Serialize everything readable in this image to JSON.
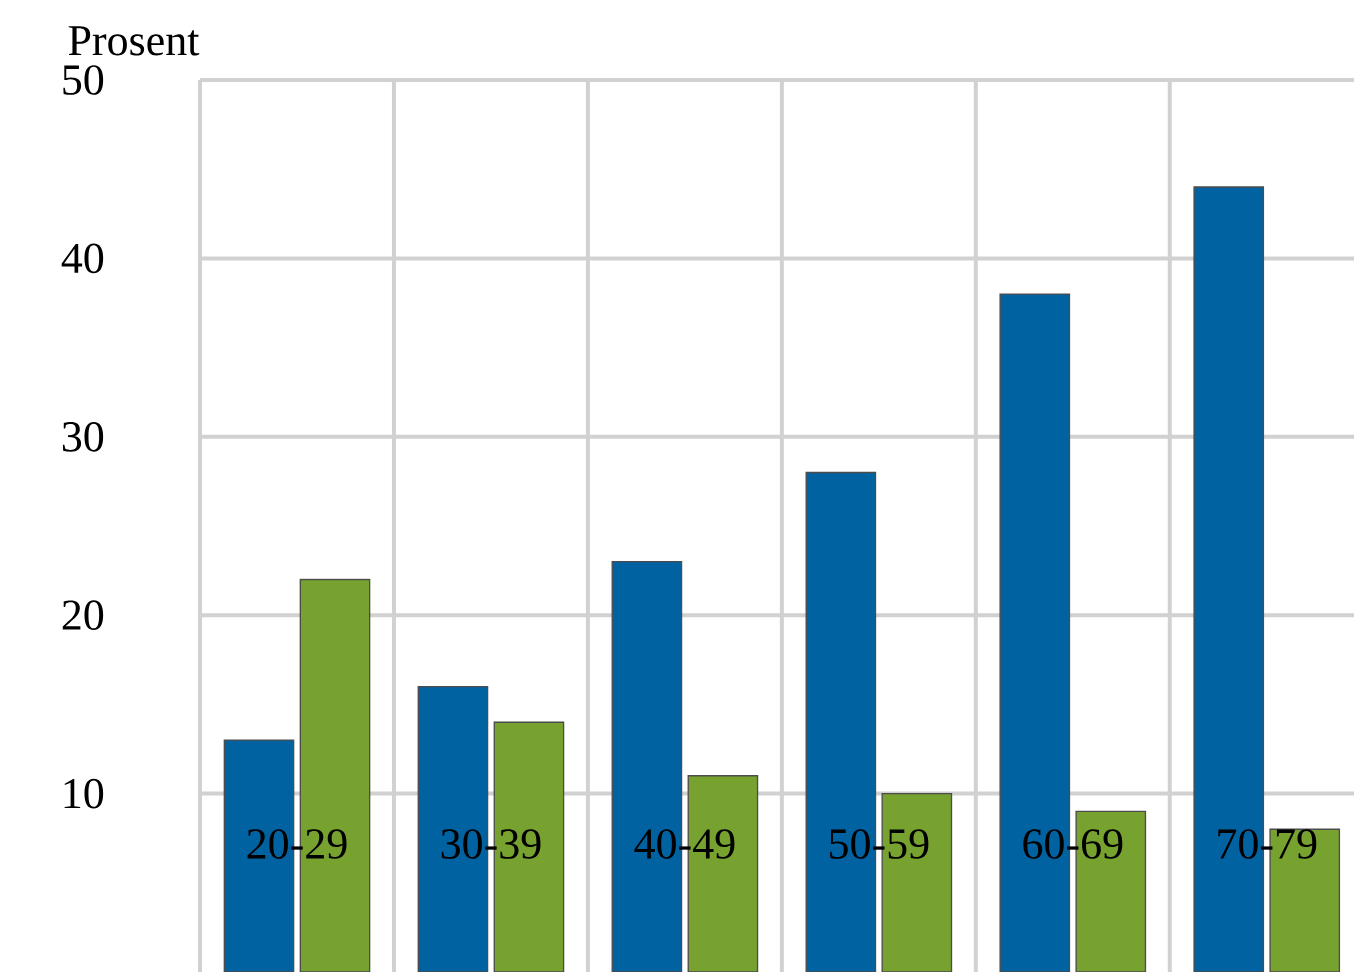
{
  "chart_data": {
    "type": "bar",
    "ylabel": "Prosent",
    "categories": [
      "20-29",
      "30-39",
      "40-49",
      "50-59",
      "60-69",
      "70-79"
    ],
    "series": [
      {
        "color": "#0062a1",
        "values": [
          13,
          16,
          23,
          28,
          38,
          44
        ]
      },
      {
        "color": "#78a22f",
        "values": [
          22,
          14,
          11,
          10,
          9,
          8
        ]
      }
    ],
    "ylim": [
      0,
      50
    ],
    "yticks": [
      10,
      20,
      30,
      40,
      50
    ],
    "grid": true
  }
}
